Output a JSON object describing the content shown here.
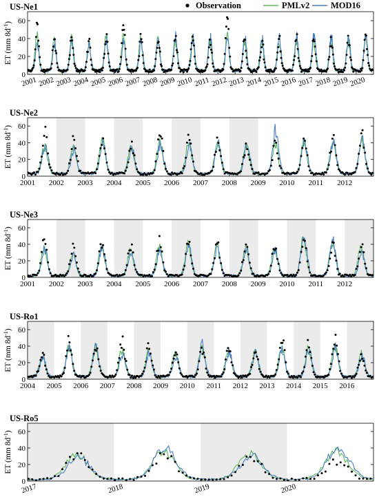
{
  "legend": {
    "observation": "Observation",
    "pml": "PMLv2",
    "mod": "MOD16"
  },
  "colors": {
    "observation": "#000000",
    "pml": "#5cb85c",
    "mod": "#4a7fc1",
    "shade": "#ebebeb"
  },
  "chart_data": [
    {
      "type": "line",
      "title": "US-Ne1",
      "ylabel_main": "ET (mm 8d",
      "ylabel_sup": "-1",
      "ylabel_end": ")",
      "ylim": [
        0,
        70
      ],
      "yticks": [
        0,
        20,
        40,
        60
      ],
      "x_range": [
        2001,
        2021
      ],
      "xticks": [
        "2001",
        "2002",
        "2003",
        "2004",
        "2005",
        "2006",
        "2007",
        "2008",
        "2009",
        "2010",
        "2011",
        "2012",
        "2013",
        "2014",
        "2015",
        "2016",
        "2017",
        "2018",
        "2019",
        "2020"
      ],
      "xticks_rotated": true,
      "shaded_years": [],
      "obs_peak": [
        52,
        40,
        43,
        36,
        44,
        53,
        42,
        41,
        40,
        40,
        38,
        60,
        38,
        36,
        38,
        41,
        39,
        38,
        40,
        41
      ],
      "pml_peak": [
        44,
        38,
        41,
        35,
        41,
        43,
        39,
        39,
        38,
        39,
        37,
        45,
        36,
        35,
        37,
        39,
        37,
        36,
        38,
        40
      ],
      "mod_peak": [
        36,
        34,
        38,
        33,
        39,
        38,
        37,
        40,
        42,
        40,
        42,
        40,
        44,
        40,
        40,
        43,
        43,
        42,
        44,
        43
      ],
      "base": 4,
      "peak_pos": 0.55,
      "width": 0.1
    },
    {
      "type": "line",
      "title": "US-Ne2",
      "ylabel_main": "ET (mm 8d",
      "ylabel_sup": "-1",
      "ylabel_end": ")",
      "ylim": [
        0,
        70
      ],
      "yticks": [
        0,
        20,
        40,
        60
      ],
      "x_range": [
        2001,
        2013
      ],
      "xticks": [
        "2001",
        "2002",
        "2003",
        "2004",
        "2005",
        "2006",
        "2007",
        "2008",
        "2009",
        "2010",
        "2011",
        "2012"
      ],
      "xticks_rotated": false,
      "shaded_years": [
        2002,
        2004,
        2006,
        2008
      ],
      "obs_peak": [
        52,
        44,
        46,
        37,
        48,
        45,
        42,
        37,
        40,
        41,
        44,
        49
      ],
      "pml_peak": [
        36,
        34,
        43,
        35,
        40,
        40,
        40,
        36,
        38,
        40,
        41,
        44
      ],
      "mod_peak": [
        36,
        32,
        38,
        33,
        39,
        36,
        40,
        37,
        55,
        40,
        42,
        44
      ],
      "base": 3,
      "peak_pos": 0.6,
      "width": 0.1
    },
    {
      "type": "line",
      "title": "US-Ne3",
      "ylabel_main": "ET (mm 8d",
      "ylabel_sup": "-1",
      "ylabel_end": ")",
      "ylim": [
        0,
        70
      ],
      "yticks": [
        0,
        20,
        40,
        60
      ],
      "x_range": [
        2001,
        2013
      ],
      "xticks": [
        "2001",
        "2002",
        "2003",
        "2004",
        "2005",
        "2006",
        "2007",
        "2008",
        "2009",
        "2010",
        "2011",
        "2012"
      ],
      "xticks_rotated": false,
      "shaded_years": [
        2002,
        2004,
        2006,
        2008,
        2010,
        2012
      ],
      "obs_peak": [
        47,
        38,
        42,
        38,
        43,
        43,
        41,
        39,
        37,
        45,
        40,
        40
      ],
      "pml_peak": [
        35,
        29,
        38,
        33,
        36,
        40,
        38,
        36,
        35,
        48,
        42,
        38
      ],
      "mod_peak": [
        34,
        27,
        35,
        30,
        32,
        37,
        35,
        35,
        34,
        52,
        44,
        28
      ],
      "base": 2,
      "peak_pos": 0.58,
      "width": 0.1
    },
    {
      "type": "line",
      "title": "US-Ro1",
      "ylabel_main": "ET (mm 8d",
      "ylabel_sup": "-1",
      "ylabel_end": ")",
      "ylim": [
        0,
        70
      ],
      "yticks": [
        0,
        20,
        40,
        60
      ],
      "x_range": [
        2004,
        2017
      ],
      "xticks": [
        "2004",
        "2005",
        "2006",
        "2007",
        "2008",
        "2009",
        "2010",
        "2011",
        "2012",
        "2013",
        "2014",
        "2015",
        "2016"
      ],
      "xticks_rotated": false,
      "shaded_years": [
        2004,
        2006,
        2008,
        2010,
        2012,
        2014,
        2016
      ],
      "obs_peak": [
        30,
        47,
        38,
        46,
        40,
        32,
        36,
        36,
        36,
        47,
        43,
        48,
        30
      ],
      "pml_peak": [
        28,
        39,
        40,
        36,
        33,
        31,
        38,
        35,
        34,
        39,
        37,
        40,
        31
      ],
      "mod_peak": [
        27,
        37,
        38,
        30,
        31,
        28,
        42,
        33,
        33,
        36,
        35,
        38,
        28
      ],
      "base": 3,
      "peak_pos": 0.56,
      "width": 0.11
    },
    {
      "type": "line",
      "title": "US-Ro5",
      "ylabel_main": "ET (mm 8d",
      "ylabel_sup": "-1",
      "ylabel_end": ")",
      "ylim": [
        0,
        70
      ],
      "yticks": [
        0,
        20,
        40,
        60
      ],
      "x_range": [
        2017,
        2021
      ],
      "xticks": [
        "2017",
        "2018",
        "2019",
        "2020"
      ],
      "xticks_rotated": true,
      "shaded_years": [
        2017,
        2019
      ],
      "obs_peak": [
        32,
        32,
        30,
        24
      ],
      "pml_peak": [
        32,
        36,
        33,
        36
      ],
      "mod_peak": [
        28,
        40,
        31,
        40
      ],
      "base": 2,
      "peak_pos": 0.58,
      "width": 0.13
    }
  ]
}
